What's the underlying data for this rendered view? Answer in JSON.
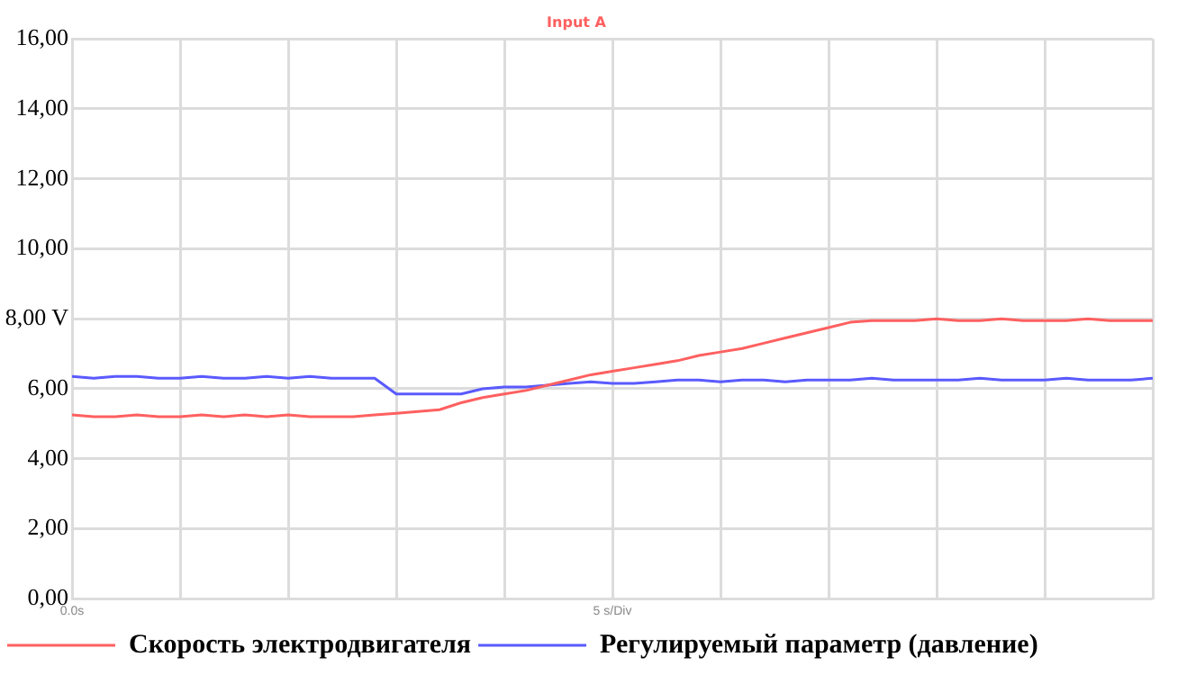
{
  "chart_data": {
    "type": "line",
    "title": "Input A",
    "categories": [
      "0.0s",
      null,
      null,
      null,
      null,
      null,
      null,
      null,
      null,
      null,
      null,
      null,
      null,
      null,
      null,
      null,
      null,
      null,
      null,
      null,
      null,
      null,
      null,
      null,
      null,
      "5 s/Div",
      null,
      null,
      null,
      null,
      null,
      null,
      null,
      null,
      null,
      null,
      null,
      null,
      null,
      null,
      null,
      null,
      null,
      null,
      null,
      null,
      null,
      null,
      null,
      null,
      null
    ],
    "series": [
      {
        "name": "Скорость электродвигателя",
        "color": "#ff6060",
        "values": [
          5.25,
          5.2,
          5.2,
          5.25,
          5.2,
          5.2,
          5.25,
          5.2,
          5.25,
          5.2,
          5.25,
          5.2,
          5.2,
          5.2,
          5.25,
          5.3,
          5.35,
          5.4,
          5.6,
          5.75,
          5.85,
          5.95,
          6.1,
          6.25,
          6.4,
          6.5,
          6.6,
          6.7,
          6.8,
          6.95,
          7.05,
          7.15,
          7.3,
          7.45,
          7.6,
          7.75,
          7.9,
          7.95,
          7.95,
          7.95,
          8.0,
          7.95,
          7.95,
          8.0,
          7.95,
          7.95,
          7.95,
          8.0,
          7.95,
          7.95,
          7.95
        ]
      },
      {
        "name": "Регулируемый параметр (давление)",
        "color": "#5a5aff",
        "values": [
          6.35,
          6.3,
          6.35,
          6.35,
          6.3,
          6.3,
          6.35,
          6.3,
          6.3,
          6.35,
          6.3,
          6.35,
          6.3,
          6.3,
          6.3,
          5.85,
          5.85,
          5.85,
          5.85,
          6.0,
          6.05,
          6.05,
          6.1,
          6.15,
          6.2,
          6.15,
          6.15,
          6.2,
          6.25,
          6.25,
          6.2,
          6.25,
          6.25,
          6.2,
          6.25,
          6.25,
          6.25,
          6.3,
          6.25,
          6.25,
          6.25,
          6.25,
          6.3,
          6.25,
          6.25,
          6.25,
          6.3,
          6.25,
          6.25,
          6.25,
          6.3
        ]
      }
    ],
    "ylim": [
      0,
      16
    ],
    "yticks": [
      {
        "value": 0,
        "label": "0,00"
      },
      {
        "value": 2,
        "label": "2,00"
      },
      {
        "value": 4,
        "label": "4,00"
      },
      {
        "value": 6,
        "label": "6,00"
      },
      {
        "value": 8,
        "label": "8,00 V"
      },
      {
        "value": 10,
        "label": "10,00"
      },
      {
        "value": 12,
        "label": "12,00"
      },
      {
        "value": 14,
        "label": "14,00"
      },
      {
        "value": 16,
        "label": "16,00"
      }
    ],
    "grid": true,
    "legend": "bottom",
    "marker": "none",
    "line_style": "solid"
  }
}
